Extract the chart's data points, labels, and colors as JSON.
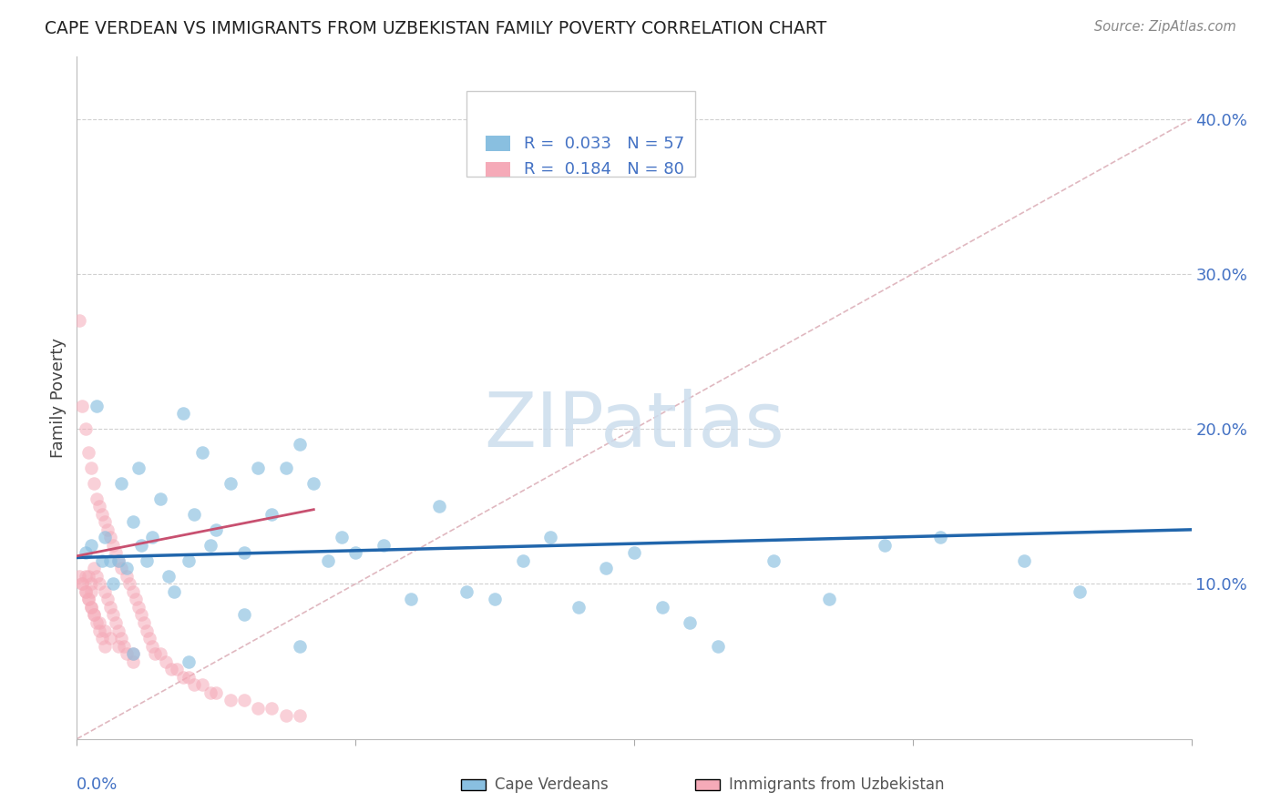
{
  "title": "CAPE VERDEAN VS IMMIGRANTS FROM UZBEKISTAN FAMILY POVERTY CORRELATION CHART",
  "source": "Source: ZipAtlas.com",
  "ylabel": "Family Poverty",
  "xlim": [
    0.0,
    0.4
  ],
  "ylim": [
    0.0,
    0.44
  ],
  "ytick_values": [
    0.1,
    0.2,
    0.3,
    0.4
  ],
  "ytick_labels": [
    "10.0%",
    "20.0%",
    "30.0%",
    "40.0%"
  ],
  "blue_color": "#89bfe0",
  "pink_color": "#f5aab8",
  "trend_blue_color": "#2166ac",
  "trend_pink_color": "#c85070",
  "ref_line_color": "#e0b8c0",
  "watermark": "ZIPatlas",
  "watermark_color": "#ccdded",
  "background_color": "#ffffff",
  "blue_scatter_x": [
    0.003,
    0.005,
    0.007,
    0.009,
    0.01,
    0.012,
    0.013,
    0.015,
    0.016,
    0.018,
    0.02,
    0.022,
    0.023,
    0.025,
    0.027,
    0.03,
    0.033,
    0.035,
    0.038,
    0.04,
    0.042,
    0.045,
    0.048,
    0.05,
    0.055,
    0.06,
    0.065,
    0.07,
    0.075,
    0.08,
    0.085,
    0.09,
    0.095,
    0.1,
    0.11,
    0.12,
    0.13,
    0.14,
    0.15,
    0.16,
    0.17,
    0.18,
    0.19,
    0.2,
    0.21,
    0.22,
    0.23,
    0.25,
    0.27,
    0.29,
    0.31,
    0.34,
    0.36,
    0.02,
    0.04,
    0.06,
    0.08
  ],
  "blue_scatter_y": [
    0.12,
    0.125,
    0.215,
    0.115,
    0.13,
    0.115,
    0.1,
    0.115,
    0.165,
    0.11,
    0.14,
    0.175,
    0.125,
    0.115,
    0.13,
    0.155,
    0.105,
    0.095,
    0.21,
    0.115,
    0.145,
    0.185,
    0.125,
    0.135,
    0.165,
    0.12,
    0.175,
    0.145,
    0.175,
    0.19,
    0.165,
    0.115,
    0.13,
    0.12,
    0.125,
    0.09,
    0.15,
    0.095,
    0.09,
    0.115,
    0.13,
    0.085,
    0.11,
    0.12,
    0.085,
    0.075,
    0.06,
    0.115,
    0.09,
    0.125,
    0.13,
    0.115,
    0.095,
    0.055,
    0.05,
    0.08,
    0.06
  ],
  "pink_scatter_x": [
    0.001,
    0.002,
    0.002,
    0.003,
    0.003,
    0.003,
    0.004,
    0.004,
    0.004,
    0.005,
    0.005,
    0.005,
    0.005,
    0.006,
    0.006,
    0.006,
    0.007,
    0.007,
    0.007,
    0.008,
    0.008,
    0.008,
    0.009,
    0.009,
    0.01,
    0.01,
    0.01,
    0.011,
    0.011,
    0.012,
    0.012,
    0.013,
    0.013,
    0.014,
    0.014,
    0.015,
    0.015,
    0.016,
    0.016,
    0.017,
    0.018,
    0.018,
    0.019,
    0.02,
    0.02,
    0.021,
    0.022,
    0.023,
    0.024,
    0.025,
    0.026,
    0.027,
    0.028,
    0.03,
    0.032,
    0.034,
    0.036,
    0.038,
    0.04,
    0.042,
    0.045,
    0.048,
    0.05,
    0.055,
    0.06,
    0.065,
    0.07,
    0.075,
    0.08,
    0.001,
    0.002,
    0.003,
    0.004,
    0.005,
    0.006,
    0.008,
    0.01,
    0.012,
    0.015,
    0.02
  ],
  "pink_scatter_y": [
    0.27,
    0.1,
    0.215,
    0.095,
    0.105,
    0.2,
    0.09,
    0.185,
    0.105,
    0.085,
    0.095,
    0.175,
    0.1,
    0.08,
    0.165,
    0.11,
    0.075,
    0.155,
    0.105,
    0.07,
    0.1,
    0.15,
    0.065,
    0.145,
    0.06,
    0.095,
    0.14,
    0.09,
    0.135,
    0.085,
    0.13,
    0.08,
    0.125,
    0.075,
    0.12,
    0.07,
    0.115,
    0.065,
    0.11,
    0.06,
    0.105,
    0.055,
    0.1,
    0.095,
    0.05,
    0.09,
    0.085,
    0.08,
    0.075,
    0.07,
    0.065,
    0.06,
    0.055,
    0.055,
    0.05,
    0.045,
    0.045,
    0.04,
    0.04,
    0.035,
    0.035,
    0.03,
    0.03,
    0.025,
    0.025,
    0.02,
    0.02,
    0.015,
    0.015,
    0.105,
    0.1,
    0.095,
    0.09,
    0.085,
    0.08,
    0.075,
    0.07,
    0.065,
    0.06,
    0.055
  ],
  "blue_trend_x": [
    0.0,
    0.4
  ],
  "blue_trend_y": [
    0.117,
    0.135
  ],
  "pink_trend_x": [
    0.0,
    0.085
  ],
  "pink_trend_y": [
    0.118,
    0.148
  ]
}
